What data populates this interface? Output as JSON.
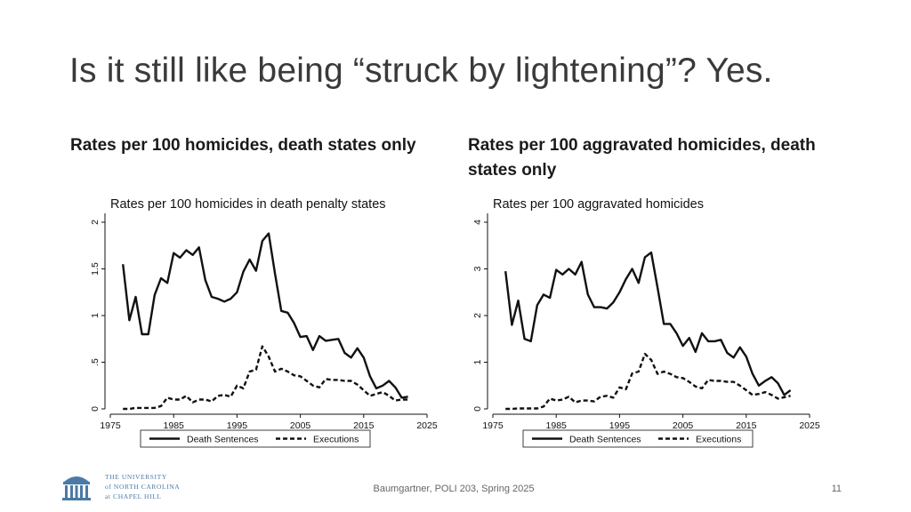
{
  "slide": {
    "title": "Is it still like being “struck by lightening”? Yes.",
    "left_heading": "Rates per 100 homicides, death states only",
    "right_heading": "Rates per 100 aggravated homicides, death states only",
    "footer": "Baumgartner, POLI 203, Spring 2025",
    "page_number": "11",
    "logo_lines": [
      "THE UNIVERSITY",
      "of NORTH CAROLINA",
      "at CHAPEL HILL"
    ]
  },
  "colors": {
    "series_line": "#111111",
    "axis": "#111111",
    "logo": "#4b7aa6"
  },
  "chart_data": [
    {
      "type": "line",
      "title": "Rates per 100 homicides in death penalty states",
      "xlim": [
        1975,
        2025
      ],
      "ylim": [
        0,
        2
      ],
      "x_ticks": [
        1975,
        1985,
        1995,
        2005,
        2015,
        2025
      ],
      "y_ticks": [
        0,
        0.5,
        1,
        1.5,
        2
      ],
      "y_tick_labels": [
        "0",
        ".5",
        "1",
        "1.5",
        "2"
      ],
      "legend": [
        "Death Sentences",
        "Executions"
      ],
      "series": [
        {
          "name": "Death Sentences",
          "style": "solid",
          "x": [
            1977,
            1978,
            1979,
            1980,
            1981,
            1982,
            1983,
            1984,
            1985,
            1986,
            1987,
            1988,
            1989,
            1990,
            1991,
            1992,
            1993,
            1994,
            1995,
            1996,
            1997,
            1998,
            1999,
            2000,
            2001,
            2002,
            2003,
            2004,
            2005,
            2006,
            2007,
            2008,
            2009,
            2010,
            2011,
            2012,
            2013,
            2014,
            2015,
            2016,
            2017,
            2018,
            2019,
            2020,
            2021,
            2022
          ],
          "values": [
            1.55,
            0.95,
            1.2,
            0.8,
            0.8,
            1.22,
            1.4,
            1.35,
            1.67,
            1.62,
            1.7,
            1.65,
            1.73,
            1.38,
            1.2,
            1.18,
            1.15,
            1.18,
            1.25,
            1.47,
            1.6,
            1.48,
            1.8,
            1.88,
            1.45,
            1.05,
            1.03,
            0.92,
            0.77,
            0.78,
            0.63,
            0.78,
            0.73,
            0.74,
            0.75,
            0.6,
            0.55,
            0.65,
            0.55,
            0.35,
            0.22,
            0.25,
            0.3,
            0.23,
            0.12,
            0.13
          ]
        },
        {
          "name": "Executions",
          "style": "dashed",
          "x": [
            1977,
            1978,
            1979,
            1980,
            1981,
            1982,
            1983,
            1984,
            1985,
            1986,
            1987,
            1988,
            1989,
            1990,
            1991,
            1992,
            1993,
            1994,
            1995,
            1996,
            1997,
            1998,
            1999,
            2000,
            2001,
            2002,
            2003,
            2004,
            2005,
            2006,
            2007,
            2008,
            2009,
            2010,
            2011,
            2012,
            2013,
            2014,
            2015,
            2016,
            2017,
            2018,
            2019,
            2020,
            2021,
            2022
          ],
          "values": [
            0.0,
            0.0,
            0.01,
            0.01,
            0.01,
            0.01,
            0.03,
            0.12,
            0.1,
            0.1,
            0.14,
            0.07,
            0.1,
            0.1,
            0.08,
            0.14,
            0.15,
            0.13,
            0.25,
            0.22,
            0.4,
            0.42,
            0.67,
            0.56,
            0.4,
            0.43,
            0.4,
            0.36,
            0.35,
            0.3,
            0.25,
            0.23,
            0.32,
            0.31,
            0.31,
            0.3,
            0.3,
            0.26,
            0.2,
            0.14,
            0.16,
            0.18,
            0.14,
            0.09,
            0.1,
            0.1
          ]
        }
      ]
    },
    {
      "type": "line",
      "title": "Rates per 100 aggravated homicides",
      "xlim": [
        1975,
        2025
      ],
      "ylim": [
        0,
        4
      ],
      "x_ticks": [
        1975,
        1985,
        1995,
        2005,
        2015,
        2025
      ],
      "y_ticks": [
        0,
        1,
        2,
        3,
        4
      ],
      "y_tick_labels": [
        "0",
        "1",
        "2",
        "3",
        "4"
      ],
      "legend": [
        "Death Sentences",
        "Executions"
      ],
      "series": [
        {
          "name": "Death Sentences",
          "style": "solid",
          "x": [
            1977,
            1978,
            1979,
            1980,
            1981,
            1982,
            1983,
            1984,
            1985,
            1986,
            1987,
            1988,
            1989,
            1990,
            1991,
            1992,
            1993,
            1994,
            1995,
            1996,
            1997,
            1998,
            1999,
            2000,
            2001,
            2002,
            2003,
            2004,
            2005,
            2006,
            2007,
            2008,
            2009,
            2010,
            2011,
            2012,
            2013,
            2014,
            2015,
            2016,
            2017,
            2018,
            2019,
            2020,
            2021,
            2022
          ],
          "values": [
            2.95,
            1.8,
            2.32,
            1.5,
            1.45,
            2.22,
            2.45,
            2.38,
            2.98,
            2.88,
            3.0,
            2.88,
            3.15,
            2.45,
            2.18,
            2.18,
            2.15,
            2.28,
            2.5,
            2.78,
            3.0,
            2.7,
            3.25,
            3.35,
            2.6,
            1.82,
            1.82,
            1.62,
            1.35,
            1.52,
            1.22,
            1.62,
            1.45,
            1.45,
            1.48,
            1.2,
            1.1,
            1.32,
            1.12,
            0.75,
            0.5,
            0.6,
            0.68,
            0.55,
            0.3,
            0.4
          ]
        },
        {
          "name": "Executions",
          "style": "dashed",
          "x": [
            1977,
            1978,
            1979,
            1980,
            1981,
            1982,
            1983,
            1984,
            1985,
            1986,
            1987,
            1988,
            1989,
            1990,
            1991,
            1992,
            1993,
            1994,
            1995,
            1996,
            1997,
            1998,
            1999,
            2000,
            2001,
            2002,
            2003,
            2004,
            2005,
            2006,
            2007,
            2008,
            2009,
            2010,
            2011,
            2012,
            2013,
            2014,
            2015,
            2016,
            2017,
            2018,
            2019,
            2020,
            2021,
            2022
          ],
          "values": [
            0.0,
            0.0,
            0.01,
            0.01,
            0.01,
            0.01,
            0.05,
            0.22,
            0.18,
            0.2,
            0.26,
            0.14,
            0.18,
            0.18,
            0.16,
            0.26,
            0.28,
            0.24,
            0.46,
            0.42,
            0.76,
            0.8,
            1.18,
            1.05,
            0.75,
            0.8,
            0.75,
            0.68,
            0.66,
            0.58,
            0.48,
            0.44,
            0.62,
            0.6,
            0.6,
            0.58,
            0.58,
            0.5,
            0.4,
            0.3,
            0.32,
            0.36,
            0.3,
            0.22,
            0.25,
            0.28
          ]
        }
      ]
    }
  ]
}
